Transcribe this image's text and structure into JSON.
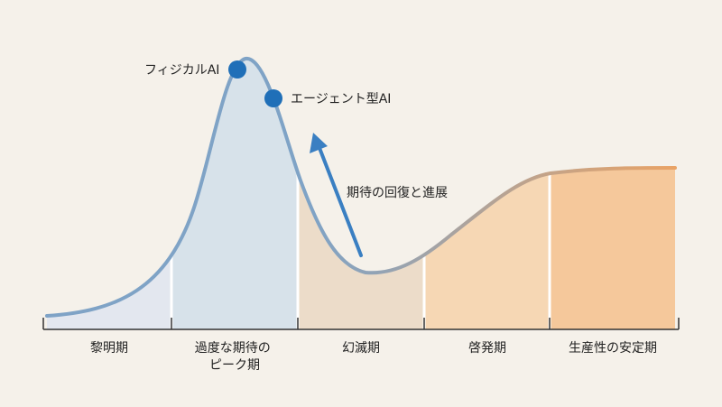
{
  "colors": {
    "background": "#f5f1ea",
    "curve_start": "#7fa3c6",
    "curve_end": "#e9a366",
    "marker": "#1f6fb8",
    "arrow": "#3a7fc2",
    "text": "#222222",
    "axis": "#333333"
  },
  "markers": [
    {
      "label": "フィジカルAI"
    },
    {
      "label": "エージェント型AI"
    }
  ],
  "arrow": {
    "label": "期待の回復と進展"
  },
  "phases": [
    {
      "lines": [
        "黎明期"
      ],
      "fill": "#e3e7ef"
    },
    {
      "lines": [
        "過度な期待の",
        "ピーク期"
      ],
      "fill": "#d7e2ea"
    },
    {
      "lines": [
        "幻滅期"
      ],
      "fill": "#ecdcc9"
    },
    {
      "lines": [
        "啓発期"
      ],
      "fill": "#f6d7b4"
    },
    {
      "lines": [
        "生産性の安定期"
      ],
      "fill": "#f5c89b"
    }
  ]
}
